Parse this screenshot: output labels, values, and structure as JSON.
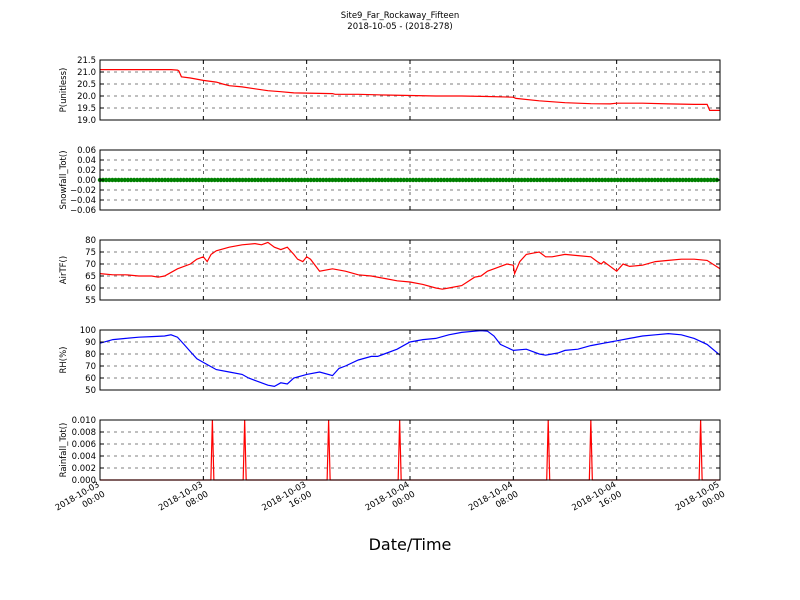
{
  "chart_data": [
    {
      "type": "line",
      "title": "Site9_Far_Rockaway_Fifteen",
      "subtitle": "2018-10-05 - (2018-278)",
      "xlabel": "Date/Time",
      "x_ticks": [
        "2018-10-03 00:00",
        "2018-10-03 08:00",
        "2018-10-03 16:00",
        "2018-10-04 00:00",
        "2018-10-04 08:00",
        "2018-10-04 16:00",
        "2018-10-05 00:00"
      ],
      "x_range_hours": [
        0,
        48
      ],
      "grid": true,
      "panels": [
        {
          "ylabel": "P(unitless)",
          "ylim": [
            19.0,
            21.5
          ],
          "yticks": [
            "19.0",
            "19.5",
            "20.0",
            "20.5",
            "21.0",
            "21.5"
          ],
          "series": [
            {
              "color": "#ff0000",
              "x": [
                0,
                3,
                5,
                5.5,
                6,
                6.1,
                6.3,
                7,
                8,
                9,
                9.5,
                10,
                11,
                12,
                13,
                14,
                15,
                16,
                17,
                18,
                18.2,
                20,
                22,
                24,
                26,
                28,
                30,
                32,
                32.2,
                34,
                36,
                38,
                39.5,
                40,
                42,
                44,
                46,
                47,
                47.2,
                48
              ],
              "y": [
                21.1,
                21.1,
                21.1,
                21.1,
                21.08,
                21.05,
                20.8,
                20.75,
                20.65,
                20.58,
                20.5,
                20.43,
                20.38,
                20.3,
                20.22,
                20.18,
                20.13,
                20.12,
                20.11,
                20.1,
                20.07,
                20.07,
                20.04,
                20.02,
                20.0,
                20.0,
                19.98,
                19.95,
                19.9,
                19.8,
                19.72,
                19.68,
                19.67,
                19.7,
                19.7,
                19.67,
                19.65,
                19.65,
                19.4,
                19.4
              ]
            }
          ]
        },
        {
          "ylabel": "Snowfall_Tot()",
          "ylim": [
            -0.06,
            0.06
          ],
          "yticks": [
            "−0.06",
            "−0.04",
            "−0.02",
            "0.00",
            "0.02",
            "0.04",
            "0.06"
          ],
          "series": [
            {
              "color": "#008000",
              "constant": 0,
              "markers": true,
              "x": [
                0,
                48
              ],
              "y": [
                0,
                0
              ]
            }
          ]
        },
        {
          "ylabel": "AirTF()",
          "ylim": [
            55,
            80
          ],
          "yticks": [
            "55",
            "60",
            "65",
            "70",
            "75",
            "80"
          ],
          "series": [
            {
              "color": "#ff0000",
              "x": [
                0,
                1,
                2,
                3,
                4,
                4.5,
                5,
                6,
                7,
                7.5,
                8,
                8.3,
                8.6,
                9,
                10,
                11,
                12,
                12.5,
                13,
                13.5,
                14,
                14.5,
                15,
                15.3,
                15.7,
                16,
                16.3,
                17,
                18,
                19,
                20,
                21,
                22,
                23,
                24,
                25,
                26,
                26.5,
                27,
                28,
                29,
                29.5,
                30,
                30.5,
                31,
                31.5,
                32,
                32.1,
                32.5,
                33,
                33.5,
                34,
                34.5,
                35,
                36,
                37,
                38,
                38.5,
                38.8,
                39,
                40,
                40.5,
                41,
                42,
                43,
                44,
                45,
                46,
                47,
                48
              ],
              "y": [
                66,
                65.5,
                65.5,
                65,
                65,
                64.5,
                65,
                68,
                70,
                72,
                73,
                71,
                74,
                75.5,
                77,
                78,
                78.5,
                78,
                79,
                77,
                76,
                77,
                74,
                72,
                71,
                73,
                72,
                67,
                68,
                67,
                65.5,
                65,
                64,
                63,
                62.5,
                61.5,
                60,
                59.5,
                60,
                61,
                64.5,
                65,
                67,
                68,
                69,
                70,
                69.5,
                66,
                71,
                74,
                74.5,
                75,
                73,
                73,
                74,
                73.5,
                73,
                71,
                70,
                71,
                67,
                70,
                69,
                69.5,
                71,
                71.5,
                72,
                72,
                71.5,
                68
              ]
            }
          ]
        },
        {
          "ylabel": "RH(%)",
          "ylim": [
            50,
            100
          ],
          "yticks": [
            "50",
            "60",
            "70",
            "80",
            "90",
            "100"
          ],
          "series": [
            {
              "color": "#0000ff",
              "x": [
                0,
                1,
                2,
                3,
                4,
                5,
                5.5,
                6,
                6.5,
                7,
                7.5,
                8,
                8.5,
                9,
                10,
                11,
                11.5,
                12,
                12.5,
                13,
                13.5,
                14,
                14.5,
                15,
                16,
                17,
                18,
                18.5,
                19,
                20,
                21,
                21.5,
                22,
                23,
                24,
                25,
                26,
                27,
                28,
                29,
                29.5,
                30,
                30.5,
                31,
                32,
                33,
                33.5,
                34,
                34.5,
                35,
                35.5,
                36,
                37,
                38,
                38.5,
                39,
                39.5,
                40,
                41,
                42,
                43,
                44,
                45,
                46,
                47,
                48
              ],
              "y": [
                89,
                92,
                93,
                94,
                94.5,
                95,
                96,
                94,
                88,
                82,
                76,
                73,
                70,
                67,
                65,
                63,
                60,
                58,
                56,
                54,
                53,
                56,
                55,
                60,
                63,
                65,
                62,
                68,
                70,
                75,
                78,
                78,
                80,
                84,
                90,
                92,
                93,
                96,
                98,
                99,
                99.5,
                99,
                95,
                88,
                83,
                84,
                82,
                80,
                79,
                80,
                81,
                83,
                84,
                87,
                88,
                89,
                90,
                91,
                93,
                95,
                96,
                97,
                96,
                93,
                88,
                79
              ]
            }
          ]
        },
        {
          "ylabel": "Rainfall_Tot()",
          "ylim": [
            0,
            0.01
          ],
          "yticks": [
            "0.000",
            "0.002",
            "0.004",
            "0.006",
            "0.008",
            "0.010"
          ],
          "series": [
            {
              "color": "#ff0000",
              "spikes_x": [
                8.7,
                11.2,
                17.7,
                23.2,
                34.7,
                38.0,
                46.5
              ],
              "spike_value": 0.01,
              "baseline": 0
            }
          ]
        }
      ]
    }
  ]
}
